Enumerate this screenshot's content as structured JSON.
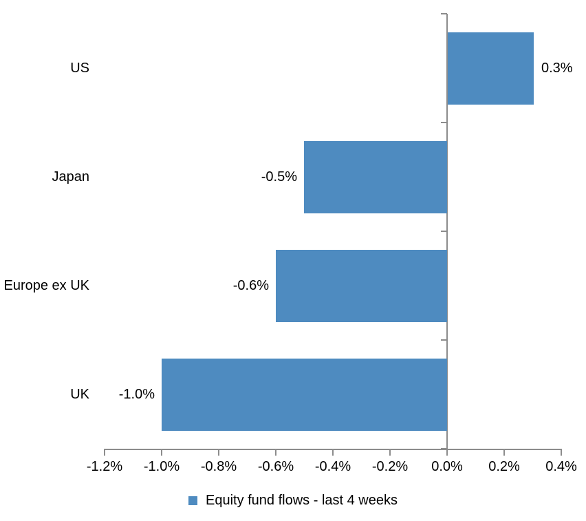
{
  "chart_data": {
    "type": "bar",
    "orientation": "horizontal",
    "title": "",
    "categories": [
      "US",
      "Japan",
      "Europe ex UK",
      "UK"
    ],
    "values": [
      0.3,
      -0.5,
      -0.6,
      -1.0
    ],
    "data_labels": [
      "0.3%",
      "-0.5%",
      "-0.6%",
      "-1.0%"
    ],
    "series": [
      {
        "name": "Equity fund flows - last 4 weeks",
        "values": [
          0.3,
          -0.5,
          -0.6,
          -1.0
        ]
      }
    ],
    "xlabel": "",
    "ylabel": "",
    "x_axis": {
      "min": -1.2,
      "max": 0.4,
      "step": 0.2,
      "tick_labels": [
        "-1.2%",
        "-1.0%",
        "-0.8%",
        "-0.6%",
        "-0.4%",
        "-0.2%",
        "0.0%",
        "0.2%",
        "0.4%"
      ]
    },
    "grid": false,
    "legend_position": "bottom",
    "colors": {
      "bar": "#4E8BC0",
      "axis": "#8C8C8C",
      "text": "#000000",
      "background": "#FFFFFF"
    }
  },
  "legend": {
    "label": "Equity fund flows - last 4 weeks"
  }
}
